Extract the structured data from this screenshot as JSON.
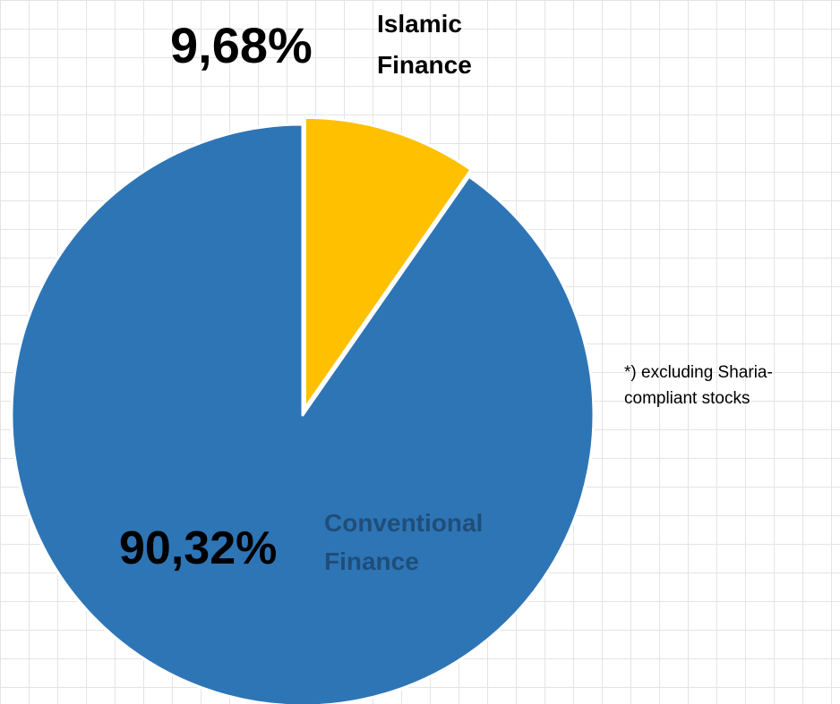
{
  "chart_data": {
    "type": "pie",
    "title": "",
    "slices": [
      {
        "label_lines": [
          "Islamic",
          "Finance"
        ],
        "value": 9.68,
        "value_label": "9,68%",
        "color": "#FFC000",
        "exploded": true
      },
      {
        "label_lines": [
          "Conventional",
          "Finance"
        ],
        "value": 90.32,
        "value_label": "90,32%",
        "color": "#2E75B6",
        "exploded": false
      }
    ],
    "start_angle_deg": 0,
    "direction": "clockwise",
    "legend": "none",
    "grid": true
  },
  "footnote": {
    "line1": "*) excluding Sharia-",
    "line2": "compliant stocks"
  },
  "colors": {
    "background": "#FFFFFF",
    "grid": "#E4E4E4",
    "islamic": "#FFC000",
    "conventional": "#2E75B6",
    "label_islamic": "#000000",
    "label_conventional": "#1F4E79"
  }
}
